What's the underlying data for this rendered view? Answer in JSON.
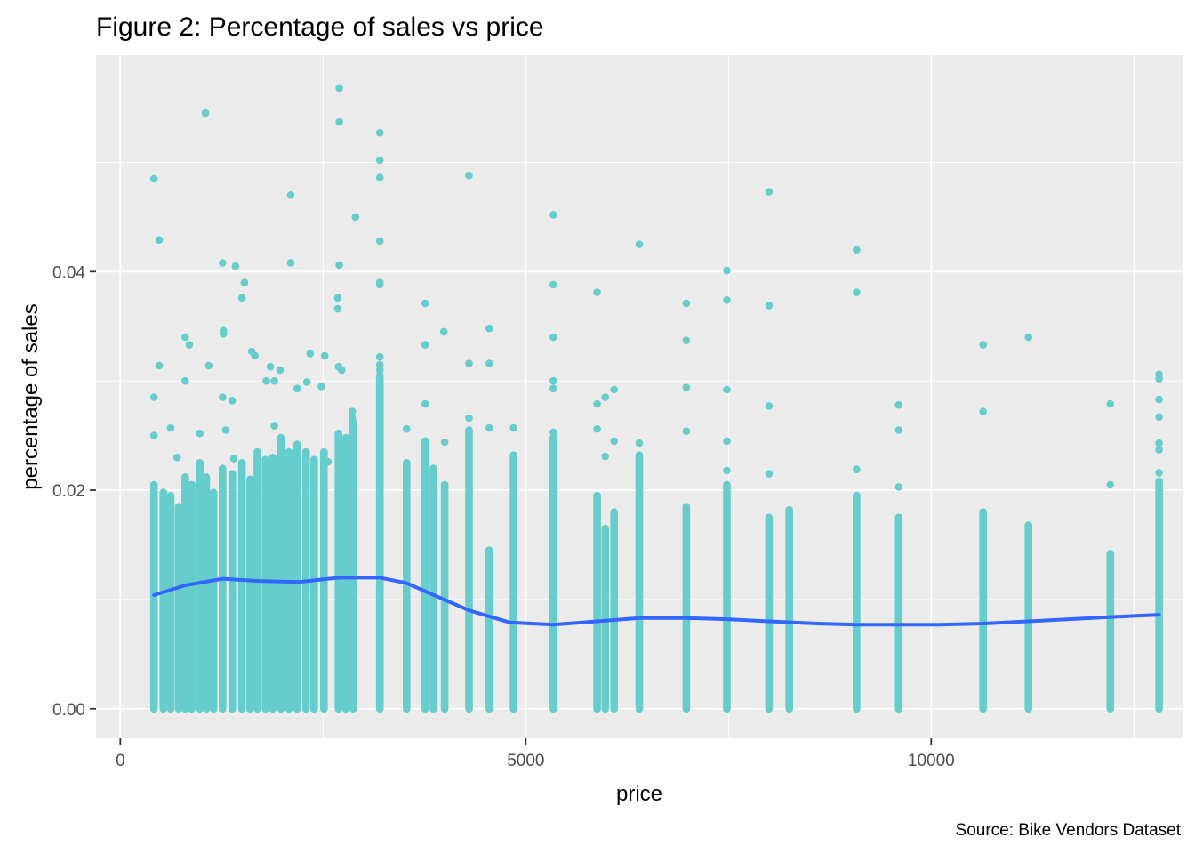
{
  "colors": {
    "panel_background": "#ebebeb",
    "grid_major": "#ffffff",
    "point": "#66cccc",
    "smooth_line": "#3366ff",
    "tick": "#333333"
  },
  "chart_data": {
    "type": "scatter",
    "title": "Figure 2: Percentage of sales vs price",
    "xlabel": "price",
    "ylabel": "percentage of sales",
    "caption": "Source: Bike Vendors Dataset",
    "xlim": [
      -300,
      13100
    ],
    "ylim": [
      -0.0027,
      0.0598
    ],
    "x_ticks": [
      0,
      5000,
      10000
    ],
    "x_tick_labels": [
      "0",
      "5000",
      "10000"
    ],
    "x_minor_ticks": [
      2500,
      7500,
      12500
    ],
    "y_ticks": [
      0,
      0.02,
      0.04
    ],
    "y_tick_labels": [
      "0.00",
      "0.02",
      "0.04"
    ],
    "y_minor_ticks": [
      0.01,
      0.03,
      0.05
    ],
    "grid": true,
    "legend": "none",
    "series": [
      {
        "name": "",
        "points": [
          [
            415,
            0.0485
          ],
          [
            480,
            0.0429
          ],
          [
            1050,
            0.0545
          ],
          [
            2100,
            0.047
          ],
          [
            2700,
            0.0568
          ],
          [
            2700,
            0.0537
          ],
          [
            3200,
            0.0527
          ],
          [
            3200,
            0.0502
          ],
          [
            3200,
            0.0486
          ],
          [
            4300,
            0.0488
          ],
          [
            2900,
            0.045
          ],
          [
            3200,
            0.0428
          ],
          [
            5340,
            0.0452
          ],
          [
            6400,
            0.0425
          ],
          [
            8000,
            0.0473
          ],
          [
            9080,
            0.042
          ],
          [
            7480,
            0.0401
          ],
          [
            1260,
            0.0408
          ],
          [
            1420,
            0.0405
          ],
          [
            2100,
            0.0408
          ],
          [
            2700,
            0.0406
          ],
          [
            1530,
            0.039
          ],
          [
            3200,
            0.039
          ],
          [
            3200,
            0.0388
          ],
          [
            5340,
            0.0388
          ],
          [
            5880,
            0.0381
          ],
          [
            9080,
            0.0381
          ],
          [
            1500,
            0.0376
          ],
          [
            2680,
            0.0376
          ],
          [
            2680,
            0.0366
          ],
          [
            3760,
            0.0371
          ],
          [
            6980,
            0.0371
          ],
          [
            7480,
            0.0374
          ],
          [
            8000,
            0.0369
          ],
          [
            3990,
            0.0345
          ],
          [
            4550,
            0.0348
          ],
          [
            3760,
            0.0333
          ],
          [
            6980,
            0.0337
          ],
          [
            5340,
            0.034
          ],
          [
            10640,
            0.0333
          ],
          [
            11200,
            0.034
          ],
          [
            800,
            0.034
          ],
          [
            850,
            0.0333
          ],
          [
            1270,
            0.0346
          ],
          [
            1270,
            0.0343
          ],
          [
            2340,
            0.0325
          ],
          [
            2520,
            0.0323
          ],
          [
            1620,
            0.0327
          ],
          [
            1660,
            0.0323
          ],
          [
            4300,
            0.0316
          ],
          [
            4550,
            0.0316
          ],
          [
            480,
            0.0314
          ],
          [
            1090,
            0.0314
          ],
          [
            1850,
            0.0313
          ],
          [
            1970,
            0.031
          ],
          [
            2690,
            0.0313
          ],
          [
            2730,
            0.031
          ],
          [
            3200,
            0.0322
          ],
          [
            3200,
            0.0315
          ],
          [
            3200,
            0.031
          ],
          [
            12810,
            0.0306
          ],
          [
            12810,
            0.0302
          ],
          [
            12810,
            0.0283
          ],
          [
            12810,
            0.0267
          ],
          [
            415,
            0.0285
          ],
          [
            800,
            0.03
          ],
          [
            1260,
            0.0285
          ],
          [
            1380,
            0.0282
          ],
          [
            1800,
            0.03
          ],
          [
            1900,
            0.03
          ],
          [
            2180,
            0.0293
          ],
          [
            2300,
            0.0299
          ],
          [
            2480,
            0.0295
          ],
          [
            5340,
            0.03
          ],
          [
            5340,
            0.0293
          ],
          [
            6090,
            0.0292
          ],
          [
            5980,
            0.0285
          ],
          [
            5880,
            0.0279
          ],
          [
            7480,
            0.0292
          ],
          [
            6980,
            0.0294
          ],
          [
            8000,
            0.0277
          ],
          [
            9600,
            0.0278
          ],
          [
            3760,
            0.0279
          ],
          [
            10640,
            0.0272
          ],
          [
            12210,
            0.0279
          ],
          [
            415,
            0.025
          ],
          [
            620,
            0.0257
          ],
          [
            980,
            0.0252
          ],
          [
            1300,
            0.0255
          ],
          [
            1900,
            0.0259
          ],
          [
            2860,
            0.0272
          ],
          [
            2860,
            0.0266
          ],
          [
            4300,
            0.0266
          ],
          [
            4000,
            0.0244
          ],
          [
            4550,
            0.0257
          ],
          [
            4850,
            0.0257
          ],
          [
            5340,
            0.0253
          ],
          [
            5880,
            0.0256
          ],
          [
            6090,
            0.0245
          ],
          [
            6400,
            0.0243
          ],
          [
            6980,
            0.0254
          ],
          [
            7480,
            0.0245
          ],
          [
            9600,
            0.0255
          ],
          [
            12810,
            0.0243
          ],
          [
            12810,
            0.0237
          ],
          [
            12810,
            0.0216
          ],
          [
            9080,
            0.0219
          ],
          [
            7480,
            0.0218
          ],
          [
            8000,
            0.0215
          ],
          [
            12210,
            0.0205
          ],
          [
            9600,
            0.0203
          ],
          [
            700,
            0.023
          ],
          [
            1400,
            0.0229
          ],
          [
            2000,
            0.0232
          ],
          [
            2560,
            0.0226
          ],
          [
            3530,
            0.0256
          ],
          [
            3530,
            0.0225
          ],
          [
            5980,
            0.0231
          ],
          [
            4850,
            0.0219
          ],
          [
            4850,
            0.0207
          ]
        ],
        "columns": [
          {
            "x": 415,
            "from": 0.0,
            "to": 0.0205
          },
          {
            "x": 530,
            "from": 0.0,
            "to": 0.0198
          },
          {
            "x": 620,
            "from": 0.0,
            "to": 0.0195
          },
          {
            "x": 720,
            "from": 0.0,
            "to": 0.0185
          },
          {
            "x": 800,
            "from": 0.0,
            "to": 0.0212
          },
          {
            "x": 880,
            "from": 0.0,
            "to": 0.0205
          },
          {
            "x": 980,
            "from": 0.0,
            "to": 0.0225
          },
          {
            "x": 1060,
            "from": 0.0,
            "to": 0.0212
          },
          {
            "x": 1150,
            "from": 0.0,
            "to": 0.0198
          },
          {
            "x": 1260,
            "from": 0.0,
            "to": 0.022
          },
          {
            "x": 1380,
            "from": 0.0,
            "to": 0.0215
          },
          {
            "x": 1500,
            "from": 0.0,
            "to": 0.0225
          },
          {
            "x": 1600,
            "from": 0.0,
            "to": 0.021
          },
          {
            "x": 1690,
            "from": 0.0,
            "to": 0.0235
          },
          {
            "x": 1790,
            "from": 0.0,
            "to": 0.0228
          },
          {
            "x": 1880,
            "from": 0.0,
            "to": 0.023
          },
          {
            "x": 1980,
            "from": 0.0,
            "to": 0.0248
          },
          {
            "x": 2080,
            "from": 0.0,
            "to": 0.0235
          },
          {
            "x": 2180,
            "from": 0.0,
            "to": 0.0242
          },
          {
            "x": 2290,
            "from": 0.0,
            "to": 0.0235
          },
          {
            "x": 2390,
            "from": 0.0,
            "to": 0.0228
          },
          {
            "x": 2510,
            "from": 0.0,
            "to": 0.0235
          },
          {
            "x": 2690,
            "from": 0.0,
            "to": 0.0252
          },
          {
            "x": 2780,
            "from": 0.0,
            "to": 0.0248
          },
          {
            "x": 2870,
            "from": 0.0,
            "to": 0.0262
          },
          {
            "x": 3200,
            "from": 0.0,
            "to": 0.0305
          },
          {
            "x": 3530,
            "from": 0.0,
            "to": 0.0225
          },
          {
            "x": 3760,
            "from": 0.0,
            "to": 0.0245
          },
          {
            "x": 3860,
            "from": 0.0,
            "to": 0.022
          },
          {
            "x": 4000,
            "from": 0.0,
            "to": 0.0205
          },
          {
            "x": 4300,
            "from": 0.0,
            "to": 0.0255
          },
          {
            "x": 4550,
            "from": 0.0,
            "to": 0.0145
          },
          {
            "x": 4850,
            "from": 0.0,
            "to": 0.0232
          },
          {
            "x": 5340,
            "from": 0.0,
            "to": 0.0248
          },
          {
            "x": 5880,
            "from": 0.0,
            "to": 0.0195
          },
          {
            "x": 5980,
            "from": 0.0,
            "to": 0.0165
          },
          {
            "x": 6090,
            "from": 0.0,
            "to": 0.018
          },
          {
            "x": 6400,
            "from": 0.0,
            "to": 0.0232
          },
          {
            "x": 6980,
            "from": 0.0,
            "to": 0.0185
          },
          {
            "x": 7480,
            "from": 0.0,
            "to": 0.0205
          },
          {
            "x": 8000,
            "from": 0.0,
            "to": 0.0175
          },
          {
            "x": 8250,
            "from": 0.0,
            "to": 0.0182
          },
          {
            "x": 9080,
            "from": 0.0,
            "to": 0.0195
          },
          {
            "x": 9600,
            "from": 0.0,
            "to": 0.0175
          },
          {
            "x": 10640,
            "from": 0.0,
            "to": 0.018
          },
          {
            "x": 11200,
            "from": 0.0,
            "to": 0.0168
          },
          {
            "x": 12210,
            "from": 0.0,
            "to": 0.0142
          },
          {
            "x": 12810,
            "from": 0.0,
            "to": 0.0208
          }
        ]
      }
    ],
    "smooth_line": {
      "x": [
        415,
        800,
        1260,
        1700,
        2200,
        2700,
        3200,
        3530,
        3900,
        4300,
        4800,
        5340,
        5880,
        6400,
        6980,
        7480,
        8000,
        8600,
        9080,
        9600,
        10100,
        10640,
        11200,
        11700,
        12210,
        12810
      ],
      "y": [
        0.0104,
        0.0113,
        0.0119,
        0.0117,
        0.0116,
        0.012,
        0.012,
        0.0115,
        0.0103,
        0.009,
        0.0079,
        0.0077,
        0.008,
        0.0083,
        0.0083,
        0.0082,
        0.008,
        0.0078,
        0.0077,
        0.0077,
        0.0077,
        0.0078,
        0.008,
        0.0082,
        0.0084,
        0.0086
      ]
    }
  }
}
